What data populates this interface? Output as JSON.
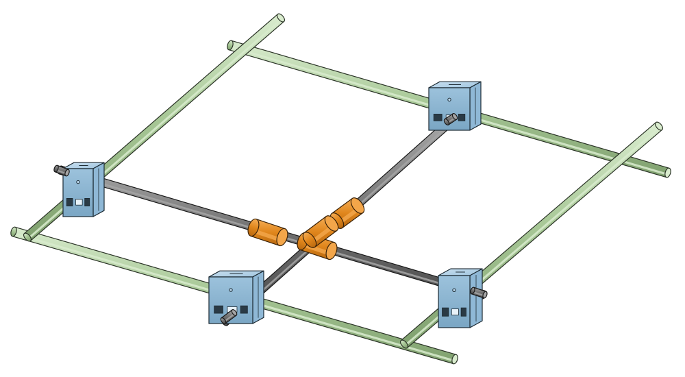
{
  "scene": {
    "kind": "cad-assembly-render",
    "colors": {
      "background": "#ffffff",
      "guide_rod": "#a8c897",
      "guide_rod_highlight": "#d9ecce",
      "guide_rod_edge": "#2a3326",
      "cross_shaft": "#6f6f6f",
      "cross_shaft_highlight": "#a6a6a6",
      "cross_shaft_edge": "#1a1a1a",
      "carriage_block": "#8fb8d6",
      "carriage_block_light": "#b9d6ea",
      "carriage_block_edge": "#1c2a33",
      "bushing": "#e0861c",
      "bushing_light": "#f3a64a",
      "bushing_edge": "#3a2208"
    },
    "parts": {
      "guide_rods": [
        "guide-rod-back",
        "guide-rod-front",
        "guide-rod-left",
        "guide-rod-right"
      ],
      "cross_shafts": [
        "cross-shaft-x",
        "cross-shaft-y"
      ],
      "carriage_blocks": [
        "carriage-block-left",
        "carriage-block-back",
        "carriage-block-front",
        "carriage-block-right"
      ],
      "center_bushings": [
        "bushing-x-left",
        "bushing-x-right",
        "bushing-y-upper",
        "bushing-y-lower"
      ]
    }
  }
}
